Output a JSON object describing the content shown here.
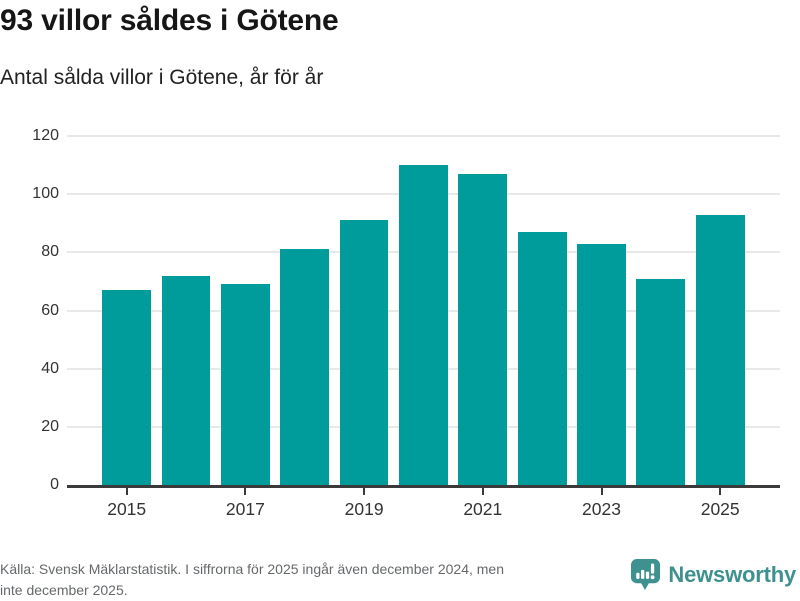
{
  "header": {
    "title": "93 villor såldes i Götene",
    "subtitle": "Antal sålda villor i Götene, år för år"
  },
  "chart_data": {
    "type": "bar",
    "title": "93 villor såldes i Götene",
    "subtitle": "Antal sålda villor i Götene, år för år",
    "categories": [
      "2015",
      "2016",
      "2017",
      "2018",
      "2019",
      "2020",
      "2021",
      "2022",
      "2023",
      "2024",
      "2025"
    ],
    "values": [
      67,
      72,
      69,
      81,
      91,
      110,
      107,
      87,
      83,
      71,
      93
    ],
    "xlabel": "",
    "ylabel": "",
    "ylim": [
      0,
      120
    ],
    "y_ticks": [
      0,
      20,
      40,
      60,
      80,
      100,
      120
    ],
    "x_tick_labels": [
      "2015",
      "2017",
      "2019",
      "2021",
      "2023",
      "2025"
    ],
    "x_tick_indices": [
      0,
      2,
      4,
      6,
      8,
      10
    ],
    "grid": true,
    "legend": false,
    "bar_color": "#009b9b",
    "grid_color": "#e8e8e8",
    "axis_color": "#3a3a3a",
    "label_color": "#333333"
  },
  "footer": {
    "lines": [
      "Källa: Svensk Mäklarstatistik. I siffrorna för 2025 ingår även december 2024, men",
      "inte december 2025."
    ],
    "brand": "Newsworthy",
    "brand_color": "#3e918e",
    "logo_icon": "bar-chart-speech-bubble-icon"
  }
}
